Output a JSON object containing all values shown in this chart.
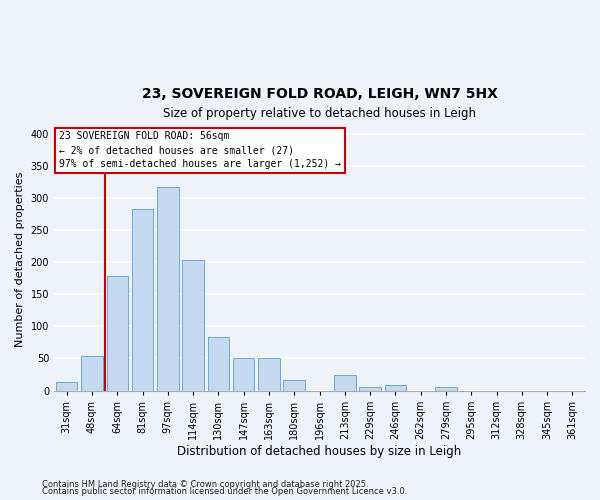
{
  "title": "23, SOVEREIGN FOLD ROAD, LEIGH, WN7 5HX",
  "subtitle": "Size of property relative to detached houses in Leigh",
  "xlabel": "Distribution of detached houses by size in Leigh",
  "ylabel": "Number of detached properties",
  "categories": [
    "31sqm",
    "48sqm",
    "64sqm",
    "81sqm",
    "97sqm",
    "114sqm",
    "130sqm",
    "147sqm",
    "163sqm",
    "180sqm",
    "196sqm",
    "213sqm",
    "229sqm",
    "246sqm",
    "262sqm",
    "279sqm",
    "295sqm",
    "312sqm",
    "328sqm",
    "345sqm",
    "361sqm"
  ],
  "values": [
    14,
    54,
    178,
    283,
    317,
    204,
    84,
    51,
    50,
    17,
    0,
    25,
    5,
    9,
    0,
    5,
    0,
    0,
    0,
    0,
    0
  ],
  "bar_color": "#c5d9f0",
  "bar_edgecolor": "#6aaad4",
  "vline_color": "#cc0000",
  "vline_x_label": "48sqm",
  "vline_x_pos": 1,
  "ylim": [
    0,
    410
  ],
  "yticks": [
    0,
    50,
    100,
    150,
    200,
    250,
    300,
    350,
    400
  ],
  "annotation_title": "23 SOVEREIGN FOLD ROAD: 56sqm",
  "annotation_line2": "← 2% of detached houses are smaller (27)",
  "annotation_line3": "97% of semi-detached houses are larger (1,252) →",
  "annotation_box_edgecolor": "#cc0000",
  "bg_color": "#eef2f9",
  "grid_color": "#ffffff",
  "footnote1": "Contains HM Land Registry data © Crown copyright and database right 2025.",
  "footnote2": "Contains public sector information licensed under the Open Government Licence v3.0.",
  "title_fontsize": 10,
  "subtitle_fontsize": 8.5,
  "ylabel_fontsize": 8,
  "xlabel_fontsize": 8.5,
  "tick_fontsize": 7,
  "ann_fontsize": 7,
  "footnote_fontsize": 6
}
